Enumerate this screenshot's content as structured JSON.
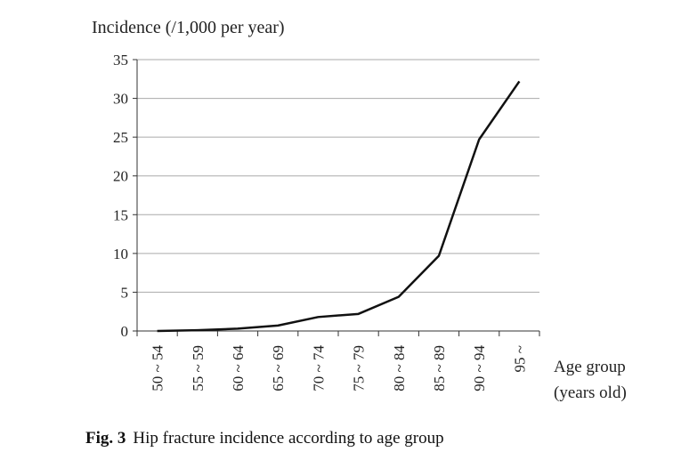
{
  "chart_data": {
    "type": "line",
    "figure_label": "Fig. 3",
    "title": "Hip fracture incidence according to age group",
    "y_label": "Incidence (/1,000 per year)",
    "x_label": "Age group (years old)",
    "categories": [
      "50 ~ 54",
      "55 ~ 59",
      "60 ~ 64",
      "65 ~ 69",
      "70 ~ 74",
      "75 ~ 79",
      "80 ~ 84",
      "85 ~ 89",
      "90 ~ 94",
      "95 ~"
    ],
    "values": [
      0,
      0.1,
      0.3,
      0.7,
      1.8,
      2.2,
      4.4,
      9.7,
      24.7,
      32.2
    ],
    "color": "#111111",
    "ylim": [
      0,
      35
    ],
    "yticks": [
      0,
      5,
      10,
      15,
      20,
      25,
      30,
      35
    ],
    "grid": true
  }
}
